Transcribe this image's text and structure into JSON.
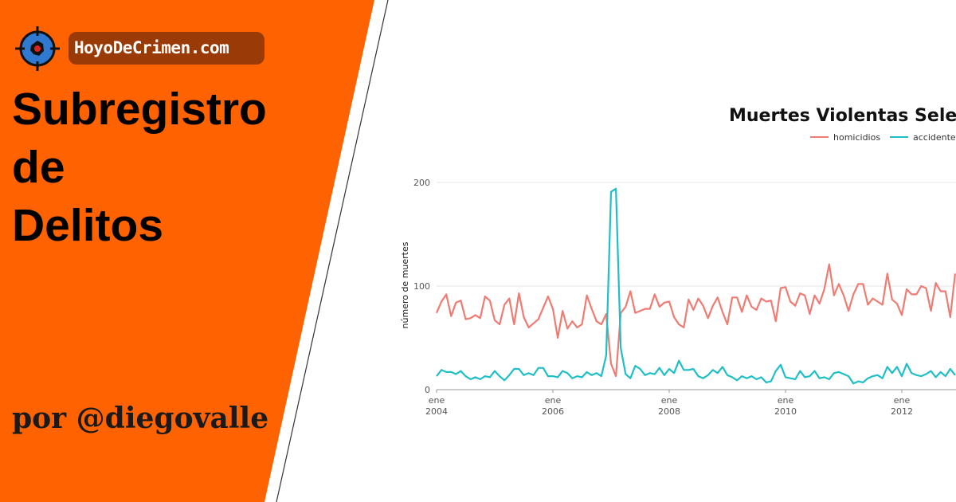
{
  "site": {
    "name": "HoyoDeCrimen.com"
  },
  "hero": {
    "title_lines": [
      "Subregistro",
      "de",
      "Delitos"
    ],
    "byline": "por @diegovalle"
  },
  "colors": {
    "panel": "#ff6200",
    "badge": "#9a3a06",
    "homicidios": "#f07b72",
    "accidentes": "#1ebfc6",
    "logo_blue": "#2f7ad0"
  },
  "chart_data": {
    "type": "line",
    "title": "Muertes Violentas Sele",
    "ylabel": "número de muertes",
    "xlabel": "",
    "ylim": [
      0,
      200
    ],
    "yticks": [
      0,
      100,
      200
    ],
    "xlim": [
      "2004-01",
      "2013-11"
    ],
    "xticks": [
      {
        "date": "2004-01",
        "label": [
          "ene",
          "2004"
        ]
      },
      {
        "date": "2006-01",
        "label": [
          "ene",
          "2006"
        ]
      },
      {
        "date": "2008-01",
        "label": [
          "ene",
          "2008"
        ]
      },
      {
        "date": "2010-01",
        "label": [
          "ene",
          "2010"
        ]
      },
      {
        "date": "2012-01",
        "label": [
          "ene",
          "2012"
        ]
      }
    ],
    "grid": true,
    "legend": "top",
    "start_month": "2004-01",
    "series": [
      {
        "name": "homicidios",
        "color": "#f07b72",
        "values": [
          74,
          85,
          92,
          71,
          84,
          86,
          68,
          69,
          72,
          69,
          90,
          86,
          67,
          63,
          82,
          88,
          63,
          93,
          70,
          60,
          64,
          68,
          79,
          90,
          78,
          50,
          76,
          59,
          66,
          60,
          63,
          91,
          78,
          66,
          63,
          73,
          25,
          13,
          74,
          80,
          95,
          74,
          76,
          78,
          78,
          92,
          80,
          84,
          85,
          70,
          63,
          60,
          87,
          77,
          88,
          81,
          69,
          81,
          89,
          75,
          63,
          89,
          89,
          75,
          91,
          80,
          77,
          88,
          85,
          86,
          66,
          98,
          99,
          85,
          81,
          93,
          91,
          73,
          91,
          83,
          97,
          121,
          91,
          102,
          91,
          76,
          92,
          102,
          102,
          82,
          88,
          85,
          82,
          112,
          87,
          83,
          72,
          97,
          92,
          92,
          100,
          98,
          76,
          103,
          95,
          95,
          70,
          112
        ]
      },
      {
        "name": "accidente",
        "color": "#1ebfc6",
        "values": [
          13,
          19,
          17,
          17,
          15,
          18,
          13,
          10,
          12,
          10,
          13,
          12,
          18,
          13,
          9,
          14,
          20,
          20,
          14,
          16,
          14,
          21,
          21,
          13,
          13,
          12,
          18,
          16,
          11,
          13,
          12,
          17,
          14,
          16,
          13,
          33,
          191,
          194,
          40,
          15,
          11,
          23,
          20,
          14,
          16,
          15,
          21,
          14,
          20,
          16,
          28,
          19,
          19,
          20,
          13,
          11,
          14,
          19,
          16,
          22,
          14,
          12,
          9,
          13,
          11,
          13,
          10,
          12,
          7,
          8,
          18,
          24,
          12,
          11,
          10,
          18,
          12,
          13,
          18,
          11,
          12,
          10,
          16,
          17,
          15,
          13,
          6,
          8,
          7,
          11,
          13,
          14,
          11,
          22,
          16,
          22,
          13,
          25,
          16,
          14,
          13,
          15,
          18,
          12,
          17,
          13,
          20,
          14
        ]
      }
    ]
  }
}
